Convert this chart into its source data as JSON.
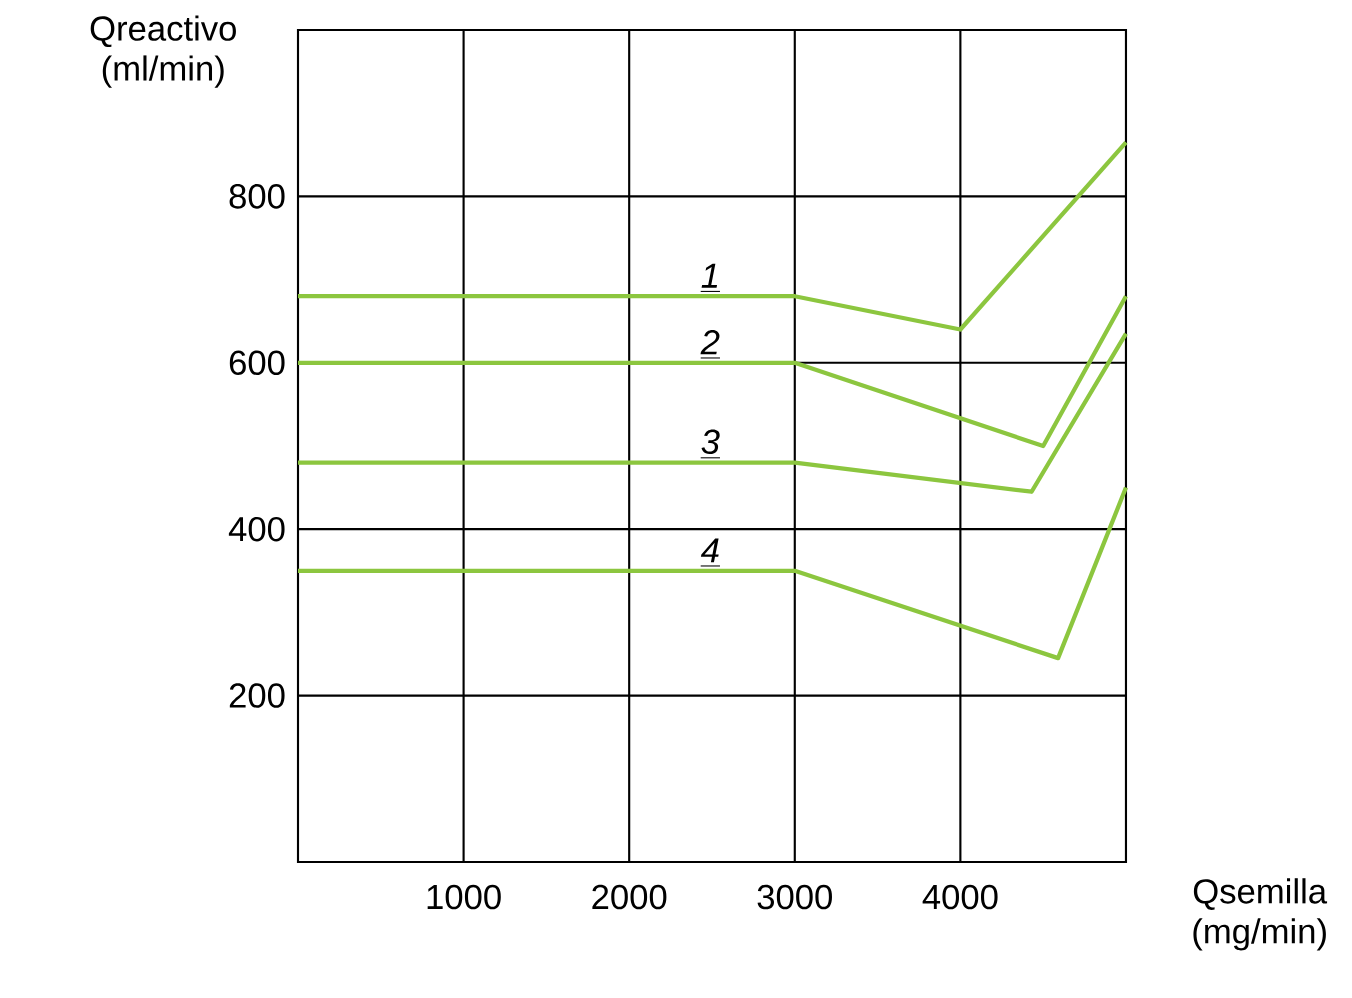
{
  "chart_data": {
    "type": "line",
    "xlabel": "Qsemilla (mg/min)",
    "ylabel": "Qreactivo (ml/min)",
    "xlim": [
      0,
      5000
    ],
    "ylim": [
      0,
      1000
    ],
    "xticks": [
      1000,
      2000,
      3000,
      4000
    ],
    "yticks": [
      200,
      400,
      600,
      800
    ],
    "grid": true,
    "marker": "none",
    "line_style": "solid",
    "series": [
      {
        "name": "1",
        "color": "#8cc63f",
        "x": [
          0,
          3000,
          4000,
          5000
        ],
        "values": [
          680,
          680,
          640,
          865
        ]
      },
      {
        "name": "2",
        "color": "#8cc63f",
        "x": [
          0,
          3000,
          4500,
          5000
        ],
        "values": [
          600,
          600,
          500,
          680
        ]
      },
      {
        "name": "3",
        "color": "#8cc63f",
        "x": [
          0,
          3000,
          4430,
          5000
        ],
        "values": [
          480,
          480,
          445,
          635
        ]
      },
      {
        "name": "4",
        "color": "#8cc63f",
        "x": [
          0,
          3000,
          4590,
          5000
        ],
        "values": [
          350,
          350,
          245,
          450
        ]
      }
    ]
  }
}
